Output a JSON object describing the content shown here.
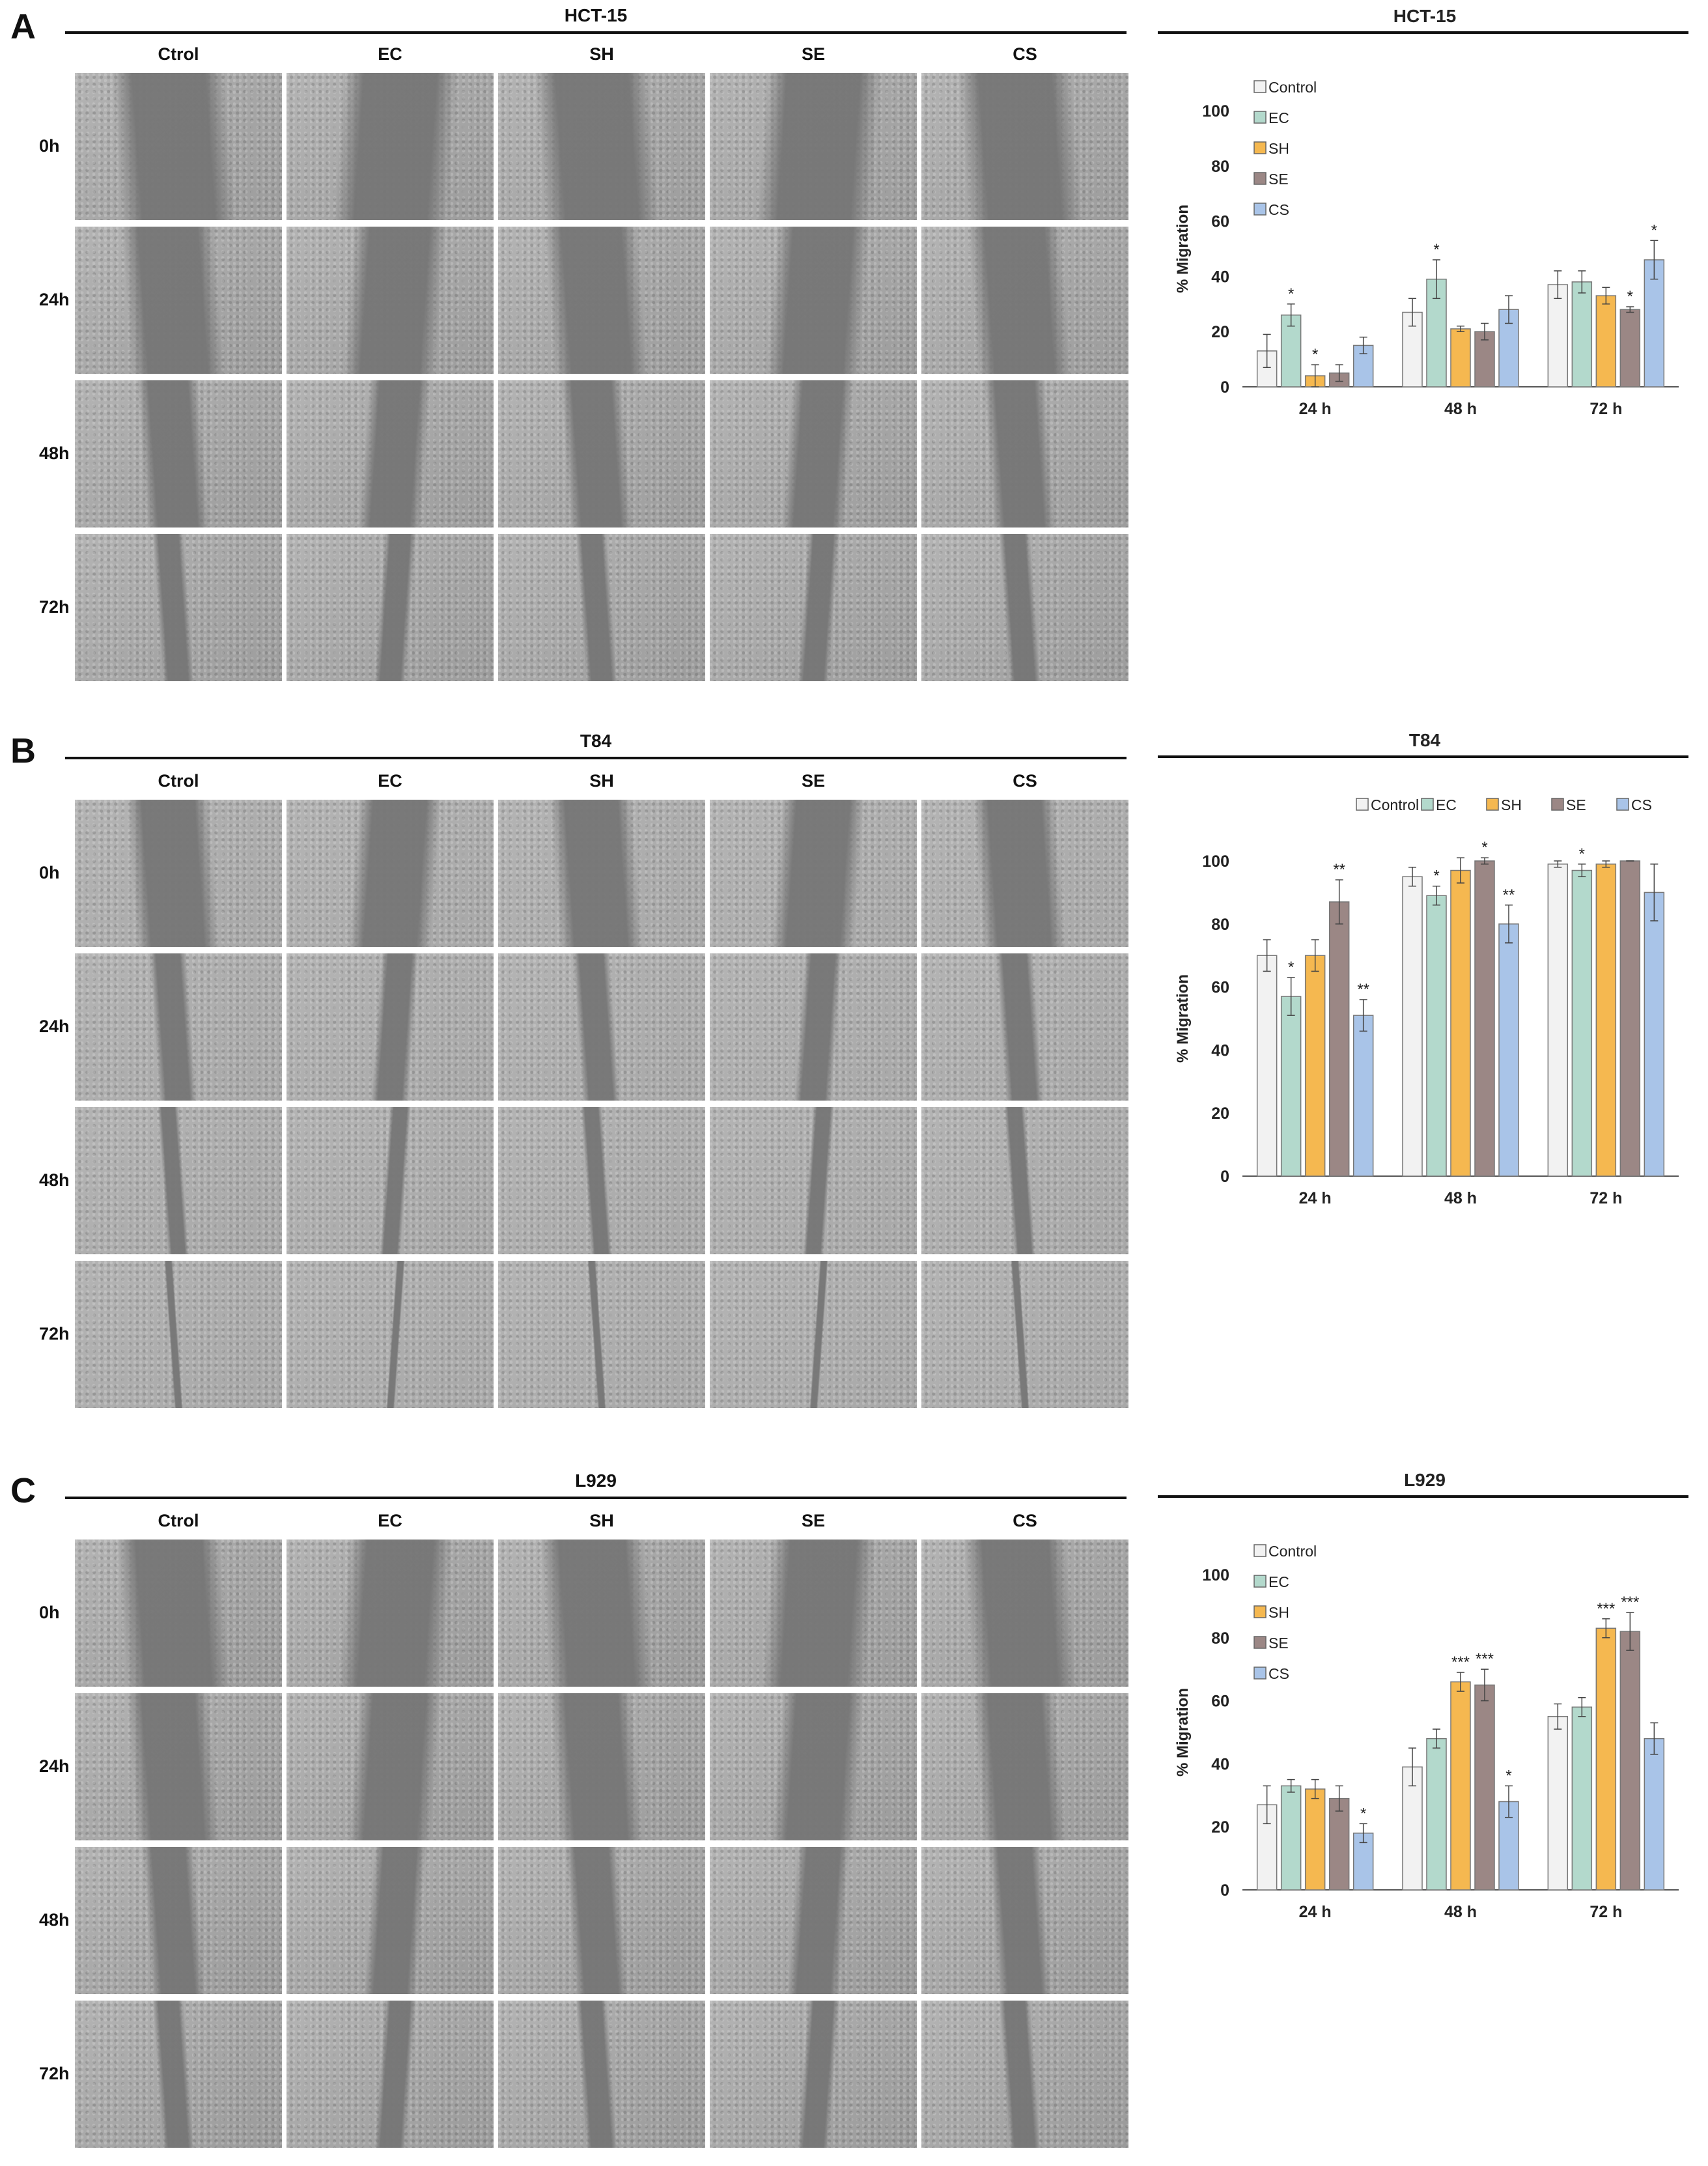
{
  "figure": {
    "panels": [
      {
        "id": "A",
        "letter": "A",
        "grid_title": "HCT-15",
        "columns": [
          "Ctrol",
          "EC",
          "SH",
          "SE",
          "CS"
        ],
        "rows": [
          "0h",
          "24h",
          "48h",
          "72h"
        ],
        "tone": "#9c9c9c",
        "wound": [
          0.55,
          0.45,
          0.3,
          0.15
        ]
      },
      {
        "id": "B",
        "letter": "B",
        "grid_title": "T84",
        "columns": [
          "Ctrol",
          "EC",
          "SH",
          "SE",
          "CS"
        ],
        "rows": [
          "0h",
          "24h",
          "48h",
          "72h"
        ],
        "tone": "#a8a8a8",
        "wound": [
          0.4,
          0.18,
          0.1,
          0.04
        ]
      },
      {
        "id": "C",
        "letter": "C",
        "grid_title": "L929",
        "columns": [
          "Ctrol",
          "EC",
          "SH",
          "SE",
          "CS"
        ],
        "rows": [
          "0h",
          "24h",
          "48h",
          "72h"
        ],
        "tone": "#9a9a9a",
        "wound": [
          0.5,
          0.4,
          0.25,
          0.15
        ]
      }
    ]
  },
  "chart_data": [
    {
      "type": "bar",
      "title": "HCT-15",
      "ylabel": "% Migration",
      "xlabel": "",
      "categories": [
        "24 h",
        "48 h",
        "72 h"
      ],
      "ylim": [
        0,
        100
      ],
      "yticks": [
        0,
        20,
        40,
        60,
        80,
        100
      ],
      "legend_placement": "top-left-vertical",
      "series": [
        {
          "name": "Control",
          "color": "#f2f2f2",
          "values": [
            13,
            27,
            37
          ],
          "errors": [
            6,
            5,
            5
          ],
          "sig": [
            "",
            "",
            ""
          ]
        },
        {
          "name": "EC",
          "color": "#b3d9cc",
          "values": [
            26,
            39,
            38
          ],
          "errors": [
            4,
            7,
            4
          ],
          "sig": [
            "*",
            "*",
            ""
          ]
        },
        {
          "name": "SH",
          "color": "#f5b850",
          "values": [
            4,
            21,
            33
          ],
          "errors": [
            4,
            1,
            3
          ],
          "sig": [
            "*",
            "",
            ""
          ]
        },
        {
          "name": "SE",
          "color": "#9b8785",
          "values": [
            5,
            20,
            28
          ],
          "errors": [
            3,
            3,
            1
          ],
          "sig": [
            "",
            "",
            "*"
          ]
        },
        {
          "name": "CS",
          "color": "#a9c4e8",
          "values": [
            15,
            28,
            46
          ],
          "errors": [
            3,
            5,
            7
          ],
          "sig": [
            "",
            "",
            "*"
          ]
        }
      ]
    },
    {
      "type": "bar",
      "title": "T84",
      "ylabel": "% Migration",
      "xlabel": "",
      "categories": [
        "24 h",
        "48 h",
        "72 h"
      ],
      "ylim": [
        0,
        100
      ],
      "yticks": [
        0,
        20,
        40,
        60,
        80,
        100
      ],
      "legend_placement": "top-horizontal",
      "series": [
        {
          "name": "Control",
          "color": "#f2f2f2",
          "values": [
            70,
            95,
            99
          ],
          "errors": [
            5,
            3,
            1
          ],
          "sig": [
            "",
            "",
            ""
          ]
        },
        {
          "name": "EC",
          "color": "#b3d9cc",
          "values": [
            57,
            89,
            97
          ],
          "errors": [
            6,
            3,
            2
          ],
          "sig": [
            "*",
            "*",
            "*"
          ]
        },
        {
          "name": "SH",
          "color": "#f5b850",
          "values": [
            70,
            97,
            99
          ],
          "errors": [
            5,
            4,
            1
          ],
          "sig": [
            "",
            "",
            ""
          ]
        },
        {
          "name": "SE",
          "color": "#9b8785",
          "values": [
            87,
            100,
            100
          ],
          "errors": [
            7,
            1,
            0
          ],
          "sig": [
            "**",
            "*",
            ""
          ]
        },
        {
          "name": "CS",
          "color": "#a9c4e8",
          "values": [
            51,
            80,
            90
          ],
          "errors": [
            5,
            6,
            9
          ],
          "sig": [
            "**",
            "**",
            ""
          ]
        }
      ]
    },
    {
      "type": "bar",
      "title": "L929",
      "ylabel": "% Migration",
      "xlabel": "",
      "categories": [
        "24 h",
        "48 h",
        "72 h"
      ],
      "ylim": [
        0,
        100
      ],
      "yticks": [
        0,
        20,
        40,
        60,
        80,
        100
      ],
      "legend_placement": "top-left-vertical",
      "series": [
        {
          "name": "Control",
          "color": "#f2f2f2",
          "values": [
            27,
            39,
            55
          ],
          "errors": [
            6,
            6,
            4
          ],
          "sig": [
            "",
            "",
            ""
          ]
        },
        {
          "name": "EC",
          "color": "#b3d9cc",
          "values": [
            33,
            48,
            58
          ],
          "errors": [
            2,
            3,
            3
          ],
          "sig": [
            "",
            "",
            ""
          ]
        },
        {
          "name": "SH",
          "color": "#f5b850",
          "values": [
            32,
            66,
            83
          ],
          "errors": [
            3,
            3,
            3
          ],
          "sig": [
            "",
            "***",
            "***"
          ]
        },
        {
          "name": "SE",
          "color": "#9b8785",
          "values": [
            29,
            65,
            82
          ],
          "errors": [
            4,
            5,
            6
          ],
          "sig": [
            "",
            "***",
            "***"
          ]
        },
        {
          "name": "CS",
          "color": "#a9c4e8",
          "values": [
            18,
            28,
            48
          ],
          "errors": [
            3,
            5,
            5
          ],
          "sig": [
            "*",
            "*",
            ""
          ]
        }
      ]
    }
  ]
}
